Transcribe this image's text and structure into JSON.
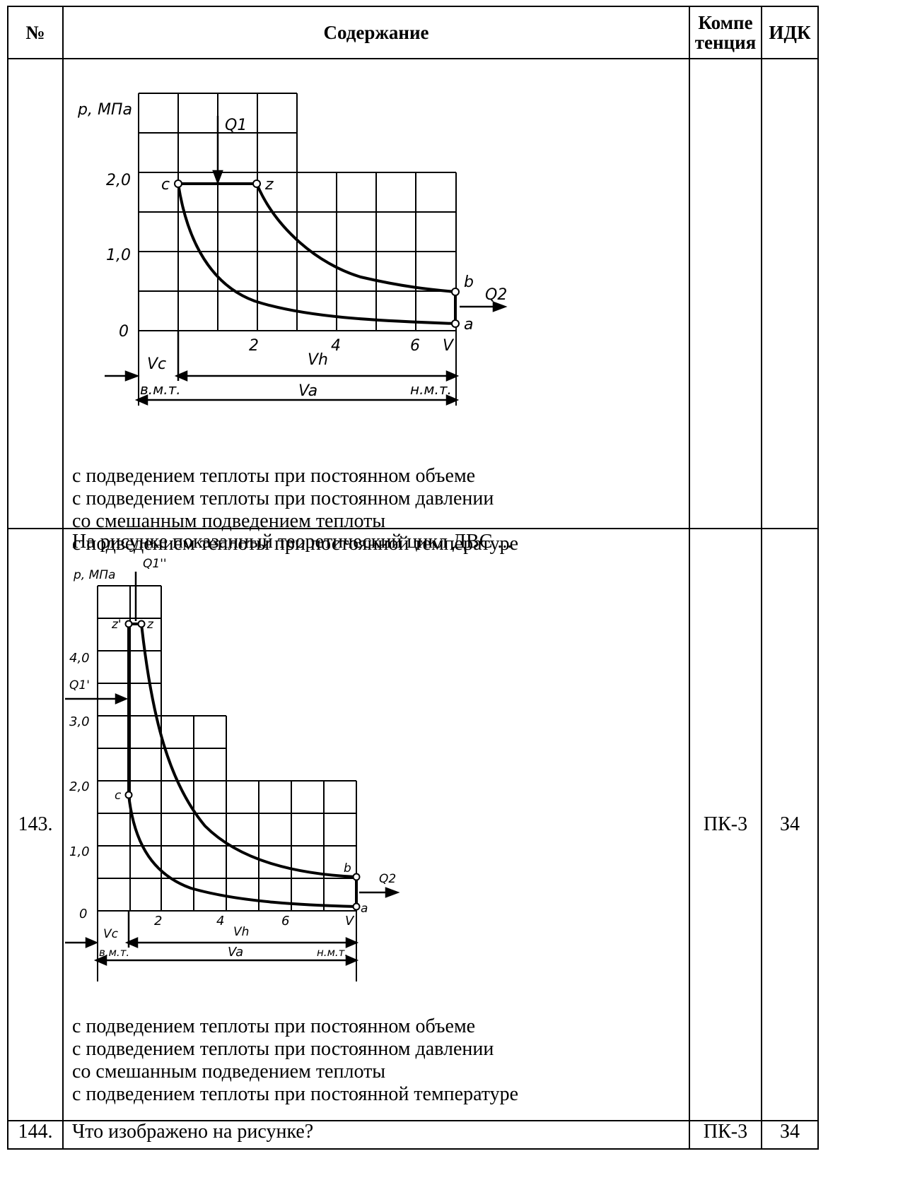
{
  "header": {
    "num": "№",
    "content": "Содержание",
    "competence_line1": "Компе",
    "competence_line2": "тенция",
    "idk": "ИДК"
  },
  "row1": {
    "figure": {
      "y_axis_label": "p, МПа",
      "y_ticks": [
        "2,0",
        "1,0",
        "0"
      ],
      "x_ticks": [
        "2",
        "4",
        "6",
        "V"
      ],
      "points": [
        "c",
        "z",
        "b",
        "a"
      ],
      "heat_in": "Q1",
      "heat_out": "Q2",
      "vc": "Vc",
      "vh": "Vh",
      "va": "Va",
      "tdc": "в.м.т.",
      "bdc": "н.м.т."
    },
    "options": [
      "с подведением теплоты при постоянном объеме",
      "с подведением теплоты при постоянном давлении",
      "со смешанным подведением теплоты",
      "с подведением теплоты при постоянной температуре"
    ]
  },
  "row143": {
    "num": "143.",
    "question": "На рисунке показанный теоретический цикл ДВС ...",
    "figure": {
      "y_axis_label": "p, МПа",
      "y_ticks": [
        "4,0",
        "3,0",
        "2,0",
        "1,0",
        "0"
      ],
      "x_ticks": [
        "2",
        "4",
        "6",
        "V"
      ],
      "points": [
        "z'",
        "z",
        "c",
        "b",
        "a"
      ],
      "heat_in_1": "Q1'",
      "heat_in_2": "Q1''",
      "heat_out": "Q2",
      "vc": "Vc",
      "vh": "Vh",
      "va": "Va",
      "tdc": "в.м.т.",
      "bdc": "н.м.т."
    },
    "options": [
      "с подведением теплоты при постоянном объеме",
      "с подведением теплоты при постоянном давлении",
      "со смешанным подведением теплоты",
      "с подведением теплоты при постоянной температуре"
    ],
    "competence": "ПК-3",
    "idk": "З4"
  },
  "row144": {
    "num": "144.",
    "question": "Что изображено на рисунке?",
    "competence": "ПК-3",
    "idk": "З4"
  }
}
